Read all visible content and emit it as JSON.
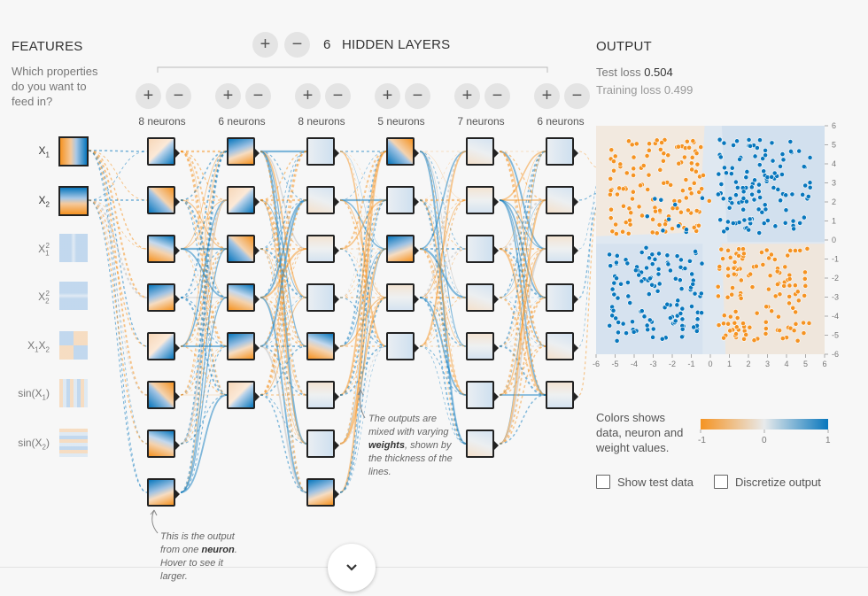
{
  "features": {
    "title": "FEATURES",
    "question_lines": [
      "Which properties",
      "do you want to",
      "feed in?"
    ],
    "items": [
      {
        "label": "X",
        "sub": "1",
        "sup": "",
        "active": true,
        "pattern": "vertical"
      },
      {
        "label": "X",
        "sub": "2",
        "sup": "",
        "active": true,
        "pattern": "horizontal"
      },
      {
        "label": "X",
        "sub": "1",
        "sup": "2",
        "active": false,
        "pattern": "vbands"
      },
      {
        "label": "X",
        "sub": "2",
        "sup": "2",
        "active": false,
        "pattern": "hbands"
      },
      {
        "label": "X",
        "sub": "1",
        "label2": "X",
        "sub2": "2",
        "active": false,
        "pattern": "quad"
      },
      {
        "label": "sin(X",
        "sub": "1",
        "tail": ")",
        "active": false,
        "pattern": "vstripes"
      },
      {
        "label": "sin(X",
        "sub": "2",
        "tail": ")",
        "active": false,
        "pattern": "hstripes"
      }
    ]
  },
  "hidden": {
    "count": "6",
    "label": "HIDDEN LAYERS",
    "add_symbol": "+",
    "remove_symbol": "−",
    "layers": [
      {
        "neurons_label": "8 neurons",
        "neurons": 8
      },
      {
        "neurons_label": "6 neurons",
        "neurons": 6
      },
      {
        "neurons_label": "8 neurons",
        "neurons": 8
      },
      {
        "neurons_label": "5 neurons",
        "neurons": 5
      },
      {
        "neurons_label": "7 neurons",
        "neurons": 7
      },
      {
        "neurons_label": "6 neurons",
        "neurons": 6
      }
    ]
  },
  "output": {
    "title": "OUTPUT",
    "test_loss_label": "Test loss",
    "test_loss": "0.504",
    "train_loss_label": "Training loss",
    "train_loss": "0.499",
    "x_ticks": [
      "-6",
      "-5",
      "-4",
      "-3",
      "-2",
      "-1",
      "0",
      "1",
      "2",
      "3",
      "4",
      "5",
      "6"
    ],
    "y_ticks": [
      "6",
      "5",
      "4",
      "3",
      "2",
      "1",
      "0",
      "-1",
      "-2",
      "-3",
      "-4",
      "-5",
      "-6"
    ],
    "legend_text_lines": [
      "Colors shows",
      "data, neuron and",
      "weight values."
    ],
    "legend_min": "-1",
    "legend_mid": "0",
    "legend_max": "1",
    "show_test_data": "Show test data",
    "discretize": "Discretize output"
  },
  "annotations": {
    "weights_before": "The outputs are mixed with varying ",
    "weights_bold": "weights",
    "weights_after": ", shown by the thickness of the lines.",
    "neuron_before": "This is the output from one ",
    "neuron_bold": "neuron",
    "neuron_after": ". Hover to see it larger."
  },
  "colors": {
    "orange": "#f59322",
    "blue": "#0877bd",
    "light_orange": "#f7d7b8",
    "light_blue": "#c9dcef"
  },
  "icons": {
    "scroll_down": "chevron-down-icon"
  }
}
